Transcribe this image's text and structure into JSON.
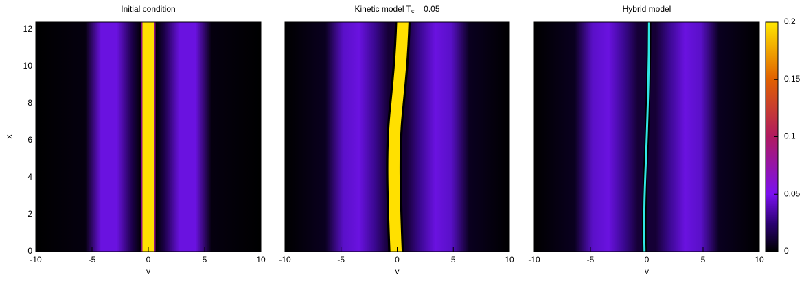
{
  "chart_data": [
    {
      "type": "heatmap",
      "title": "Initial condition",
      "xlabel": "v",
      "ylabel": "x",
      "xlim": [
        -10,
        10
      ],
      "xticks": [
        -10,
        -5,
        0,
        5,
        10
      ],
      "ylim": [
        0,
        12.4
      ],
      "yticks": [
        0,
        2,
        4,
        6,
        8,
        10,
        12
      ]
    },
    {
      "type": "heatmap",
      "title": [
        "Kinetic model T",
        "c",
        " = 0.05"
      ],
      "xlabel": "v",
      "xlim": [
        -10,
        10
      ],
      "xticks": [
        -10,
        -5,
        0,
        5,
        10
      ],
      "ylim": [
        0,
        12.4
      ]
    },
    {
      "type": "heatmap",
      "title": "Hybrid model",
      "xlabel": "v",
      "xlim": [
        -10,
        10
      ],
      "xticks": [
        -10,
        -5,
        0,
        5,
        10
      ],
      "ylim": [
        0,
        12.4
      ]
    },
    {
      "type": "colorbar",
      "ylim": [
        0,
        0.2
      ],
      "yticks": [
        0,
        0.05,
        0.1,
        0.15,
        0.2
      ]
    }
  ]
}
